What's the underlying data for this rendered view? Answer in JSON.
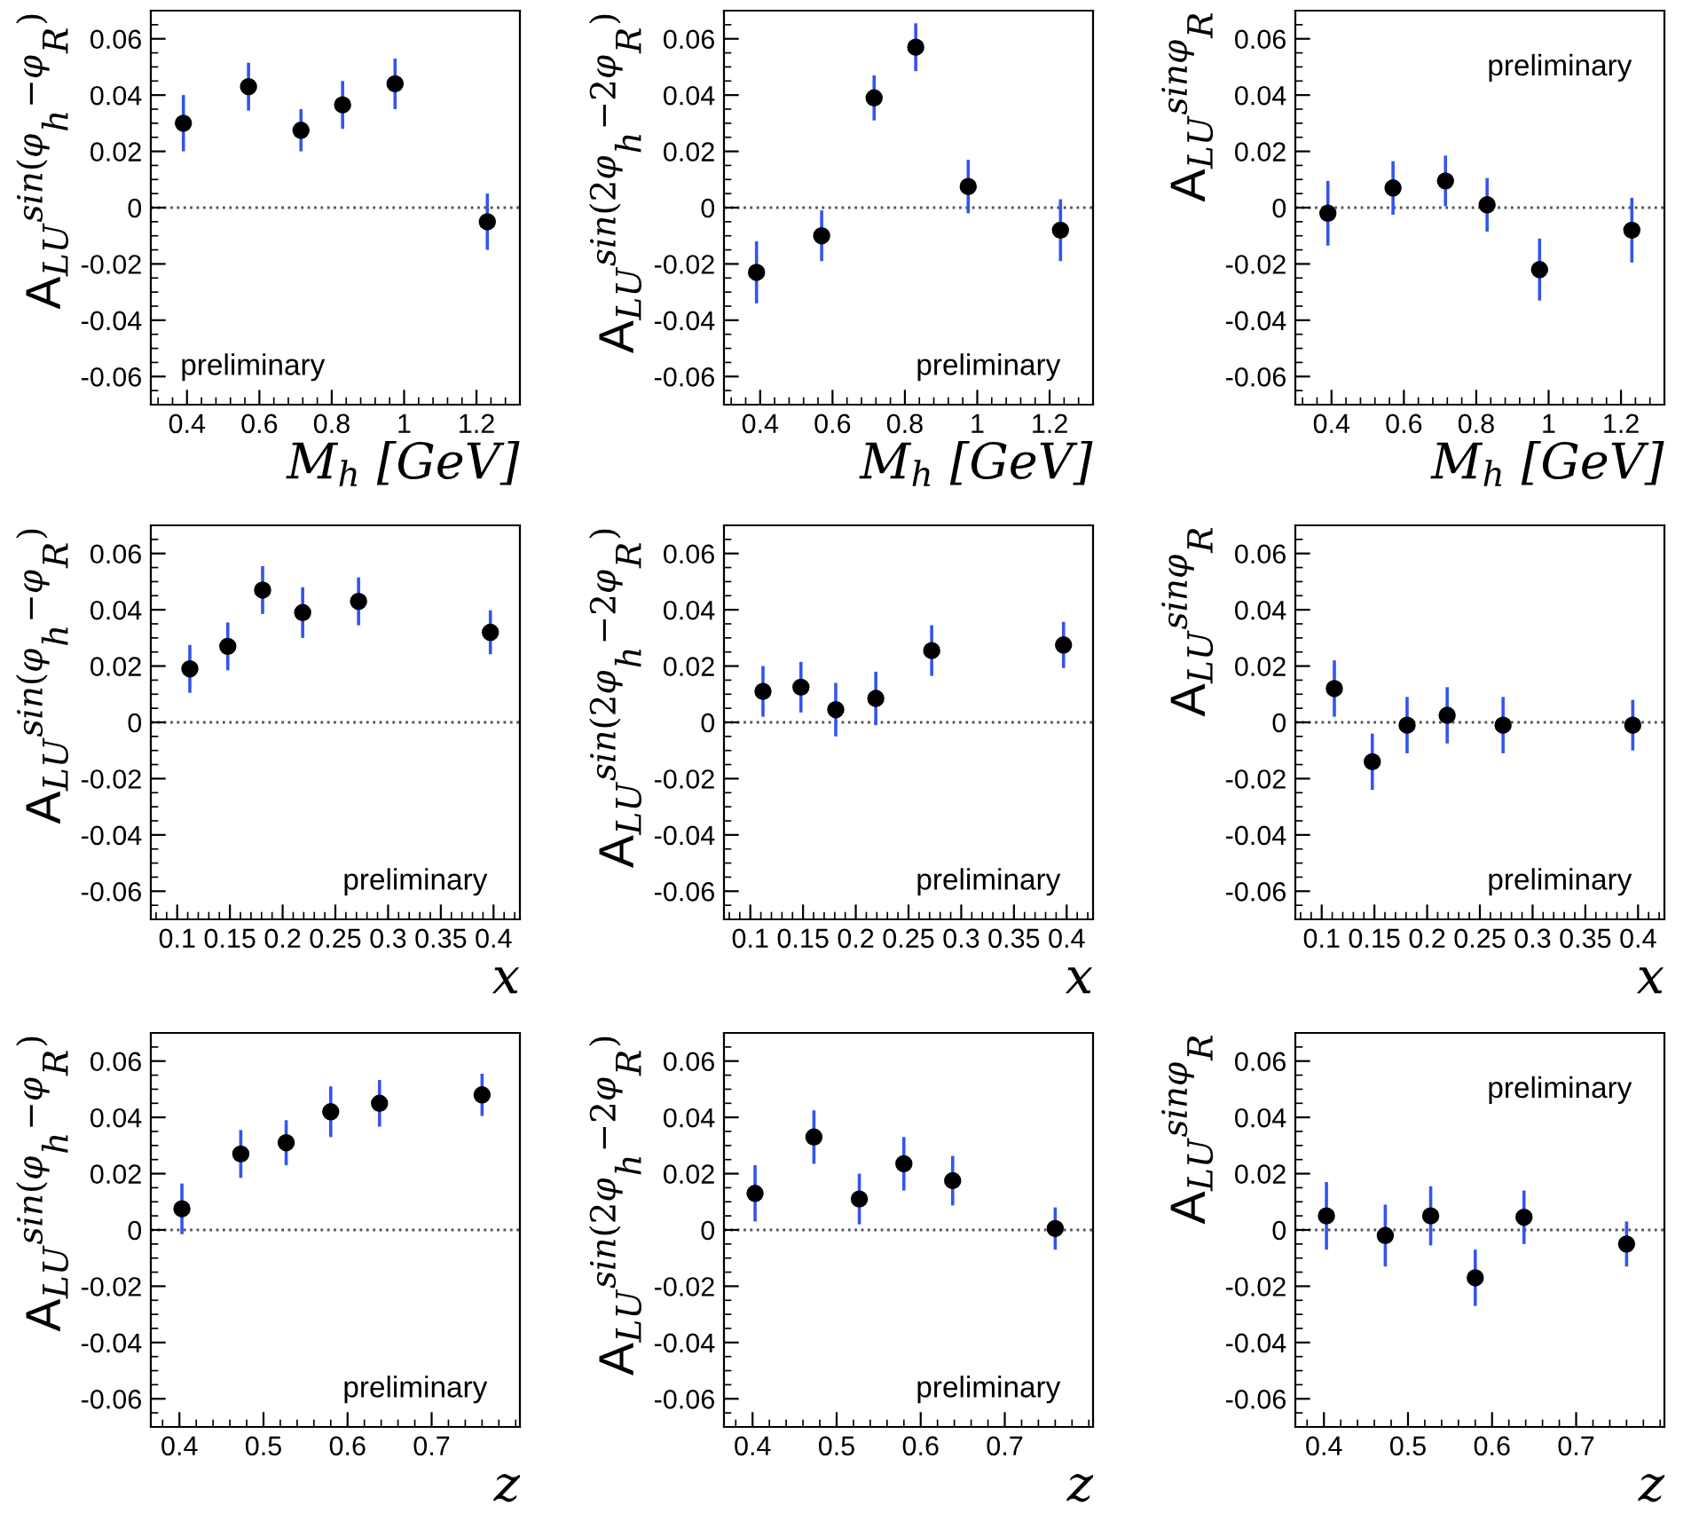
{
  "chart_data": [
    {
      "type": "scatter",
      "x": [
        0.39,
        0.57,
        0.715,
        0.83,
        0.975,
        1.23
      ],
      "series": [
        {
          "color": "#000000",
          "values": [
            0.03,
            0.043,
            0.0275,
            0.0365,
            0.044,
            -0.005
          ],
          "errors": [
            0.01,
            0.0085,
            0.0075,
            0.0085,
            0.009,
            0.01
          ]
        }
      ],
      "xlabel": "M$_{h}$ [GeV]",
      "ylabel": "A$_{LU}$$^{sin(φ}$$_{h}$$^{−φ}$$_{R}$$^{)}$",
      "annotations": [
        "preliminary"
      ],
      "xlim": [
        0.3,
        1.32
      ],
      "xticks": [
        0.4,
        0.6,
        0.8,
        1,
        1.2
      ],
      "ylim": [
        -0.07,
        0.07
      ],
      "yticks": [
        -0.06,
        -0.04,
        -0.02,
        0,
        0.02,
        0.04,
        0.06
      ],
      "ref_lines": [
        {
          "axis": "y",
          "value": 0,
          "line_style": "dotted"
        }
      ],
      "marker": "circle",
      "grid": false,
      "legend": false
    },
    {
      "type": "scatter",
      "x": [
        0.39,
        0.57,
        0.715,
        0.83,
        0.975,
        1.23
      ],
      "series": [
        {
          "color": "#000000",
          "values": [
            -0.023,
            -0.01,
            0.039,
            0.057,
            0.0075,
            -0.008
          ],
          "errors": [
            0.011,
            0.009,
            0.008,
            0.0085,
            0.0095,
            0.011
          ]
        }
      ],
      "xlabel": "M$_{h}$ [GeV]",
      "ylabel": "A$_{LU}$$^{sin(2φ}$$_{h}$$^{−2φ}$$_{R}$$^{)}$",
      "annotations": [
        "preliminary"
      ],
      "xlim": [
        0.3,
        1.32
      ],
      "xticks": [
        0.4,
        0.6,
        0.8,
        1,
        1.2
      ],
      "ylim": [
        -0.07,
        0.07
      ],
      "yticks": [
        -0.06,
        -0.04,
        -0.02,
        0,
        0.02,
        0.04,
        0.06
      ],
      "ref_lines": [
        {
          "axis": "y",
          "value": 0,
          "line_style": "dotted"
        }
      ],
      "marker": "circle",
      "grid": false,
      "legend": false
    },
    {
      "type": "scatter",
      "x": [
        0.39,
        0.57,
        0.715,
        0.83,
        0.975,
        1.23
      ],
      "series": [
        {
          "color": "#000000",
          "values": [
            -0.002,
            0.007,
            0.0095,
            0.001,
            -0.022,
            -0.008
          ],
          "errors": [
            0.0115,
            0.0095,
            0.009,
            0.0095,
            0.011,
            0.0115
          ]
        }
      ],
      "xlabel": "M$_{h}$ [GeV]",
      "ylabel": "A$_{LU}$$^{sinφ}$$_{R}$",
      "annotations": [
        "preliminary"
      ],
      "xlim": [
        0.3,
        1.32
      ],
      "xticks": [
        0.4,
        0.6,
        0.8,
        1,
        1.2
      ],
      "ylim": [
        -0.07,
        0.07
      ],
      "yticks": [
        -0.06,
        -0.04,
        -0.02,
        0,
        0.02,
        0.04,
        0.06
      ],
      "ref_lines": [
        {
          "axis": "y",
          "value": 0,
          "line_style": "dotted"
        }
      ],
      "marker": "circle",
      "grid": false,
      "legend": false
    },
    {
      "type": "scatter",
      "x": [
        0.112,
        0.148,
        0.181,
        0.219,
        0.272,
        0.397
      ],
      "series": [
        {
          "color": "#000000",
          "values": [
            0.019,
            0.027,
            0.047,
            0.039,
            0.043,
            0.032
          ],
          "errors": [
            0.0085,
            0.0085,
            0.0085,
            0.009,
            0.0085,
            0.0078
          ]
        }
      ],
      "xlabel": "x",
      "ylabel": "A$_{LU}$$^{sin(φ}$$_{h}$$^{−φ}$$_{R}$$^{)}$",
      "annotations": [
        "preliminary"
      ],
      "xlim": [
        0.075,
        0.425
      ],
      "xticks": [
        0.1,
        0.15,
        0.2,
        0.25,
        0.3,
        0.35,
        0.4
      ],
      "ylim": [
        -0.07,
        0.07
      ],
      "yticks": [
        -0.06,
        -0.04,
        -0.02,
        0,
        0.02,
        0.04,
        0.06
      ],
      "ref_lines": [
        {
          "axis": "y",
          "value": 0,
          "line_style": "dotted"
        }
      ],
      "marker": "circle",
      "grid": false,
      "legend": false
    },
    {
      "type": "scatter",
      "x": [
        0.112,
        0.148,
        0.181,
        0.219,
        0.272,
        0.397
      ],
      "series": [
        {
          "color": "#000000",
          "values": [
            0.011,
            0.0125,
            0.0045,
            0.0085,
            0.0255,
            0.0275
          ],
          "errors": [
            0.009,
            0.009,
            0.0095,
            0.0095,
            0.009,
            0.0082
          ]
        }
      ],
      "xlabel": "x",
      "ylabel": "A$_{LU}$$^{sin(2φ}$$_{h}$$^{−2φ}$$_{R}$$^{)}$",
      "annotations": [
        "preliminary"
      ],
      "xlim": [
        0.075,
        0.425
      ],
      "xticks": [
        0.1,
        0.15,
        0.2,
        0.25,
        0.3,
        0.35,
        0.4
      ],
      "ylim": [
        -0.07,
        0.07
      ],
      "yticks": [
        -0.06,
        -0.04,
        -0.02,
        0,
        0.02,
        0.04,
        0.06
      ],
      "ref_lines": [
        {
          "axis": "y",
          "value": 0,
          "line_style": "dotted"
        }
      ],
      "marker": "circle",
      "grid": false,
      "legend": false
    },
    {
      "type": "scatter",
      "x": [
        0.112,
        0.148,
        0.181,
        0.219,
        0.272,
        0.395
      ],
      "series": [
        {
          "color": "#000000",
          "values": [
            0.012,
            -0.014,
            -0.001,
            0.0025,
            -0.001,
            -0.001
          ],
          "errors": [
            0.01,
            0.01,
            0.01,
            0.01,
            0.01,
            0.009
          ]
        }
      ],
      "xlabel": "x",
      "ylabel": "A$_{LU}$$^{sinφ}$$_{R}$",
      "annotations": [
        "preliminary"
      ],
      "xlim": [
        0.075,
        0.425
      ],
      "xticks": [
        0.1,
        0.15,
        0.2,
        0.25,
        0.3,
        0.35,
        0.4
      ],
      "ylim": [
        -0.07,
        0.07
      ],
      "yticks": [
        -0.06,
        -0.04,
        -0.02,
        0,
        0.02,
        0.04,
        0.06
      ],
      "ref_lines": [
        {
          "axis": "y",
          "value": 0,
          "line_style": "dotted"
        }
      ],
      "marker": "circle",
      "grid": false,
      "legend": false
    },
    {
      "type": "scatter",
      "x": [
        0.403,
        0.473,
        0.527,
        0.58,
        0.638,
        0.76
      ],
      "series": [
        {
          "color": "#000000",
          "values": [
            0.0075,
            0.027,
            0.031,
            0.042,
            0.045,
            0.048
          ],
          "errors": [
            0.009,
            0.0085,
            0.008,
            0.009,
            0.0083,
            0.0075
          ]
        }
      ],
      "xlabel": "z",
      "ylabel": "A$_{LU}$$^{sin(φ}$$_{h}$$^{−φ}$$_{R}$$^{)}$",
      "annotations": [
        "preliminary"
      ],
      "xlim": [
        0.366,
        0.805
      ],
      "xticks": [
        0.4,
        0.5,
        0.6,
        0.7
      ],
      "ylim": [
        -0.07,
        0.07
      ],
      "yticks": [
        -0.06,
        -0.04,
        -0.02,
        0,
        0.02,
        0.04,
        0.06
      ],
      "ref_lines": [
        {
          "axis": "y",
          "value": 0,
          "line_style": "dotted"
        }
      ],
      "marker": "circle",
      "grid": false,
      "legend": false
    },
    {
      "type": "scatter",
      "x": [
        0.403,
        0.473,
        0.527,
        0.58,
        0.638,
        0.76
      ],
      "series": [
        {
          "color": "#000000",
          "values": [
            0.013,
            0.033,
            0.011,
            0.0235,
            0.0175,
            0.0005
          ],
          "errors": [
            0.01,
            0.0095,
            0.009,
            0.0095,
            0.0088,
            0.0075
          ]
        }
      ],
      "xlabel": "z",
      "ylabel": "A$_{LU}$$^{sin(2φ}$$_{h}$$^{−2φ}$$_{R}$$^{)}$",
      "annotations": [
        "preliminary"
      ],
      "xlim": [
        0.366,
        0.805
      ],
      "xticks": [
        0.4,
        0.5,
        0.6,
        0.7
      ],
      "ylim": [
        -0.07,
        0.07
      ],
      "yticks": [
        -0.06,
        -0.04,
        -0.02,
        0,
        0.02,
        0.04,
        0.06
      ],
      "ref_lines": [
        {
          "axis": "y",
          "value": 0,
          "line_style": "dotted"
        }
      ],
      "marker": "circle",
      "grid": false,
      "legend": false
    },
    {
      "type": "scatter",
      "x": [
        0.403,
        0.473,
        0.527,
        0.58,
        0.638,
        0.76
      ],
      "series": [
        {
          "color": "#000000",
          "values": [
            0.005,
            -0.002,
            0.005,
            -0.017,
            0.0045,
            -0.005
          ],
          "errors": [
            0.012,
            0.011,
            0.0105,
            0.01,
            0.0095,
            0.008
          ]
        }
      ],
      "xlabel": "z",
      "ylabel": "A$_{LU}$$^{sinφ}$$_{R}$",
      "annotations": [
        "preliminary"
      ],
      "xlim": [
        0.366,
        0.805
      ],
      "xticks": [
        0.4,
        0.5,
        0.6,
        0.7
      ],
      "ylim": [
        -0.07,
        0.07
      ],
      "yticks": [
        -0.06,
        -0.04,
        -0.02,
        0,
        0.02,
        0.04,
        0.06
      ],
      "ref_lines": [
        {
          "axis": "y",
          "value": 0,
          "line_style": "dotted"
        }
      ],
      "marker": "circle",
      "grid": false,
      "legend": false
    }
  ]
}
